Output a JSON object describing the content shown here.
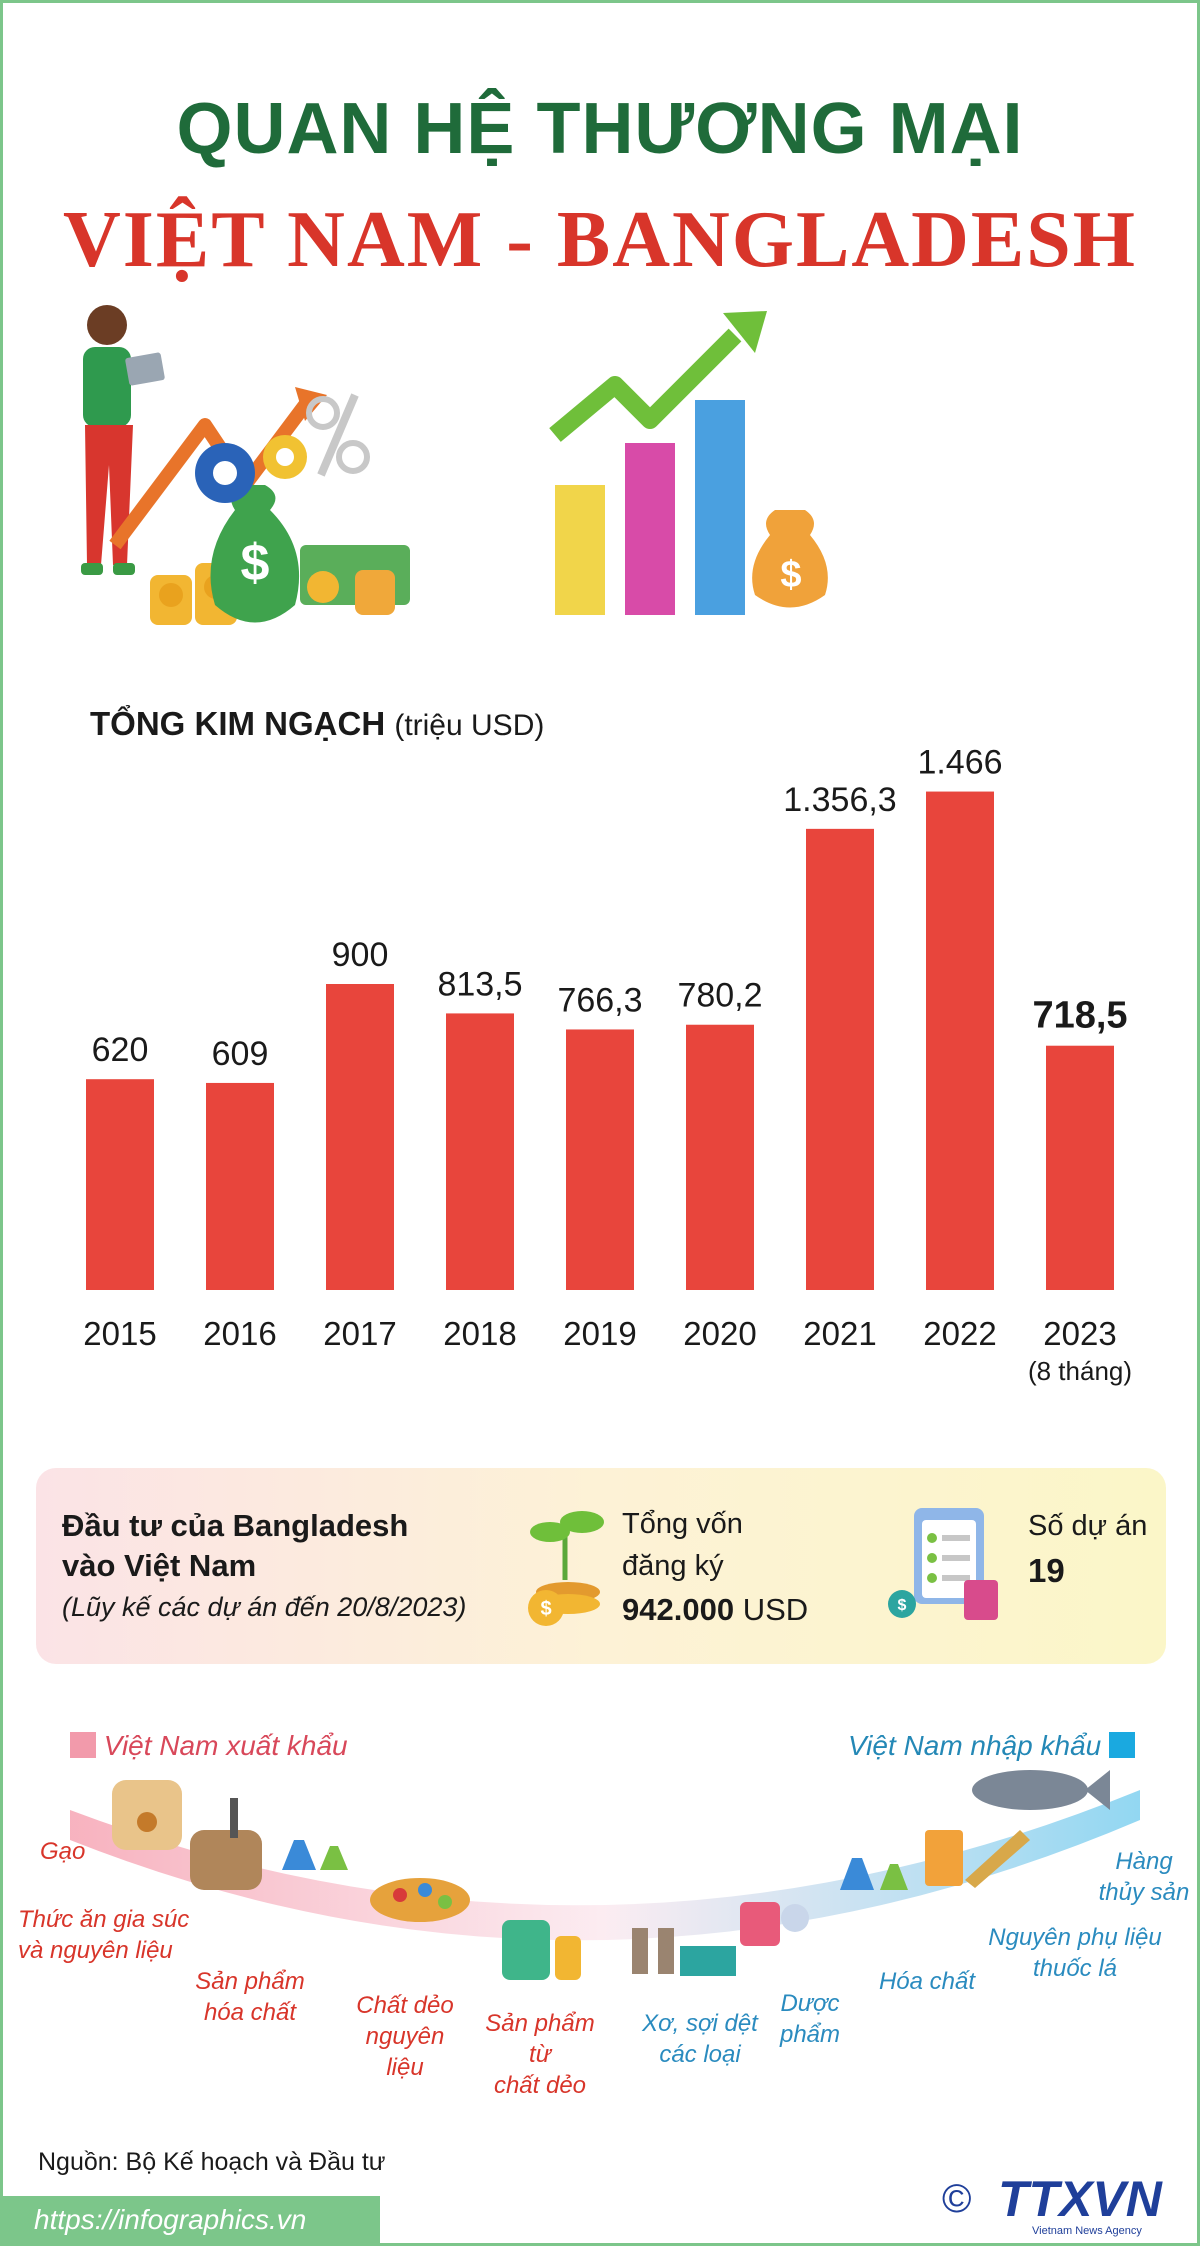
{
  "title_line1": "QUAN HỆ THƯƠNG MẠI",
  "title_line2": "VIỆT NAM -  BANGLADESH",
  "chart_title_bold": "TỔNG KIM NGẠCH",
  "chart_title_unit": "(triệu USD)",
  "chart_data": {
    "type": "bar",
    "categories": [
      "2015",
      "2016",
      "2017",
      "2018",
      "2019",
      "2020",
      "2021",
      "2022",
      "2023"
    ],
    "category_notes": [
      "",
      "",
      "",
      "",
      "",
      "",
      "",
      "",
      "(8 tháng)"
    ],
    "values": [
      620,
      609,
      900,
      813.5,
      766.3,
      780.2,
      1356.3,
      1466,
      718.5
    ],
    "value_labels": [
      "620",
      "609",
      "900",
      "813,5",
      "766,3",
      "780,2",
      "1.356,3",
      "1.466",
      "718,5"
    ],
    "title": "TỔNG KIM NGẠCH",
    "ylabel": "(triệu USD)",
    "ylim": [
      0,
      1500
    ],
    "grid": false,
    "bar_color": "#e8453c",
    "highlight_index": 8
  },
  "investment": {
    "heading_line1": "Đầu tư của Bangladesh",
    "heading_line2": "vào Việt Nam",
    "subheading": "(Lũy kế các dự án đến 20/8/2023)",
    "capital_label_line1": "Tổng vốn",
    "capital_label_line2": "đăng ký",
    "capital_value": "942.000",
    "capital_unit": "USD",
    "projects_label": "Số dự án",
    "projects_value": "19"
  },
  "trade": {
    "export_legend": "Việt Nam xuất khẩu",
    "import_legend": "Việt Nam nhập khẩu",
    "export_color": "#f29aab",
    "import_color": "#1aa9e0",
    "exports": {
      "rice": "Gạo",
      "feed_1": "Thức ăn gia súc",
      "feed_2": "và nguyên liệu",
      "chem_1": "Sản phẩm",
      "chem_2": "hóa chất",
      "plastic_1": "Chất dẻo",
      "plastic_2": "nguyên",
      "plastic_3": "liệu",
      "plasticprod_1": "Sản phẩm",
      "plasticprod_2": "từ",
      "plasticprod_3": "chất dẻo"
    },
    "imports": {
      "textile_1": "Xơ, sợi dệt",
      "textile_2": "các loại",
      "pharma_1": "Dược",
      "pharma_2": "phẩm",
      "chemicals": "Hóa chất",
      "tobacco_1": "Nguyên phụ liệu",
      "tobacco_2": "thuốc lá",
      "seafood_1": "Hàng",
      "seafood_2": "thủy sản"
    }
  },
  "source": "Nguồn: Bộ Kế hoạch và Đầu tư",
  "url": "https://infographics.vn",
  "logo_text": "TTXVN",
  "logo_sub": "Vietnam News Agency",
  "logo_copyright": "©"
}
